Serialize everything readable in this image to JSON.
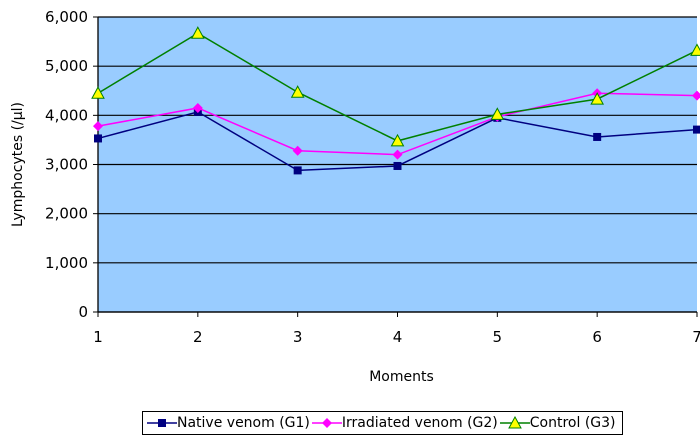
{
  "chart_data": {
    "type": "line",
    "ylabel": "Lymphocytes (/µl)",
    "xlabel": "Moments",
    "x": [
      1,
      2,
      3,
      4,
      5,
      6,
      7
    ],
    "y_ticks": [
      "0",
      "1,000",
      "2,000",
      "3,000",
      "4,000",
      "5,000",
      "6,000"
    ],
    "ylim": [
      0,
      6000
    ],
    "grid": true,
    "plot_background": "#99ccff",
    "legend_position": "bottom",
    "series": [
      {
        "name": "Native venom (G1)",
        "color": "#000080",
        "marker": "square",
        "values": [
          3530,
          4070,
          2880,
          2970,
          3950,
          3560,
          3710
        ]
      },
      {
        "name": "Irradiated venom (G2)",
        "color": "#ff00ff",
        "marker": "diamond",
        "values": [
          3780,
          4150,
          3280,
          3200,
          3970,
          4450,
          4400
        ]
      },
      {
        "name": "Control (G3)",
        "color": "#008000",
        "marker": "triangle",
        "marker_fill": "#ffff00",
        "values": [
          4450,
          5670,
          4470,
          3480,
          4020,
          4330,
          5320
        ]
      }
    ]
  }
}
